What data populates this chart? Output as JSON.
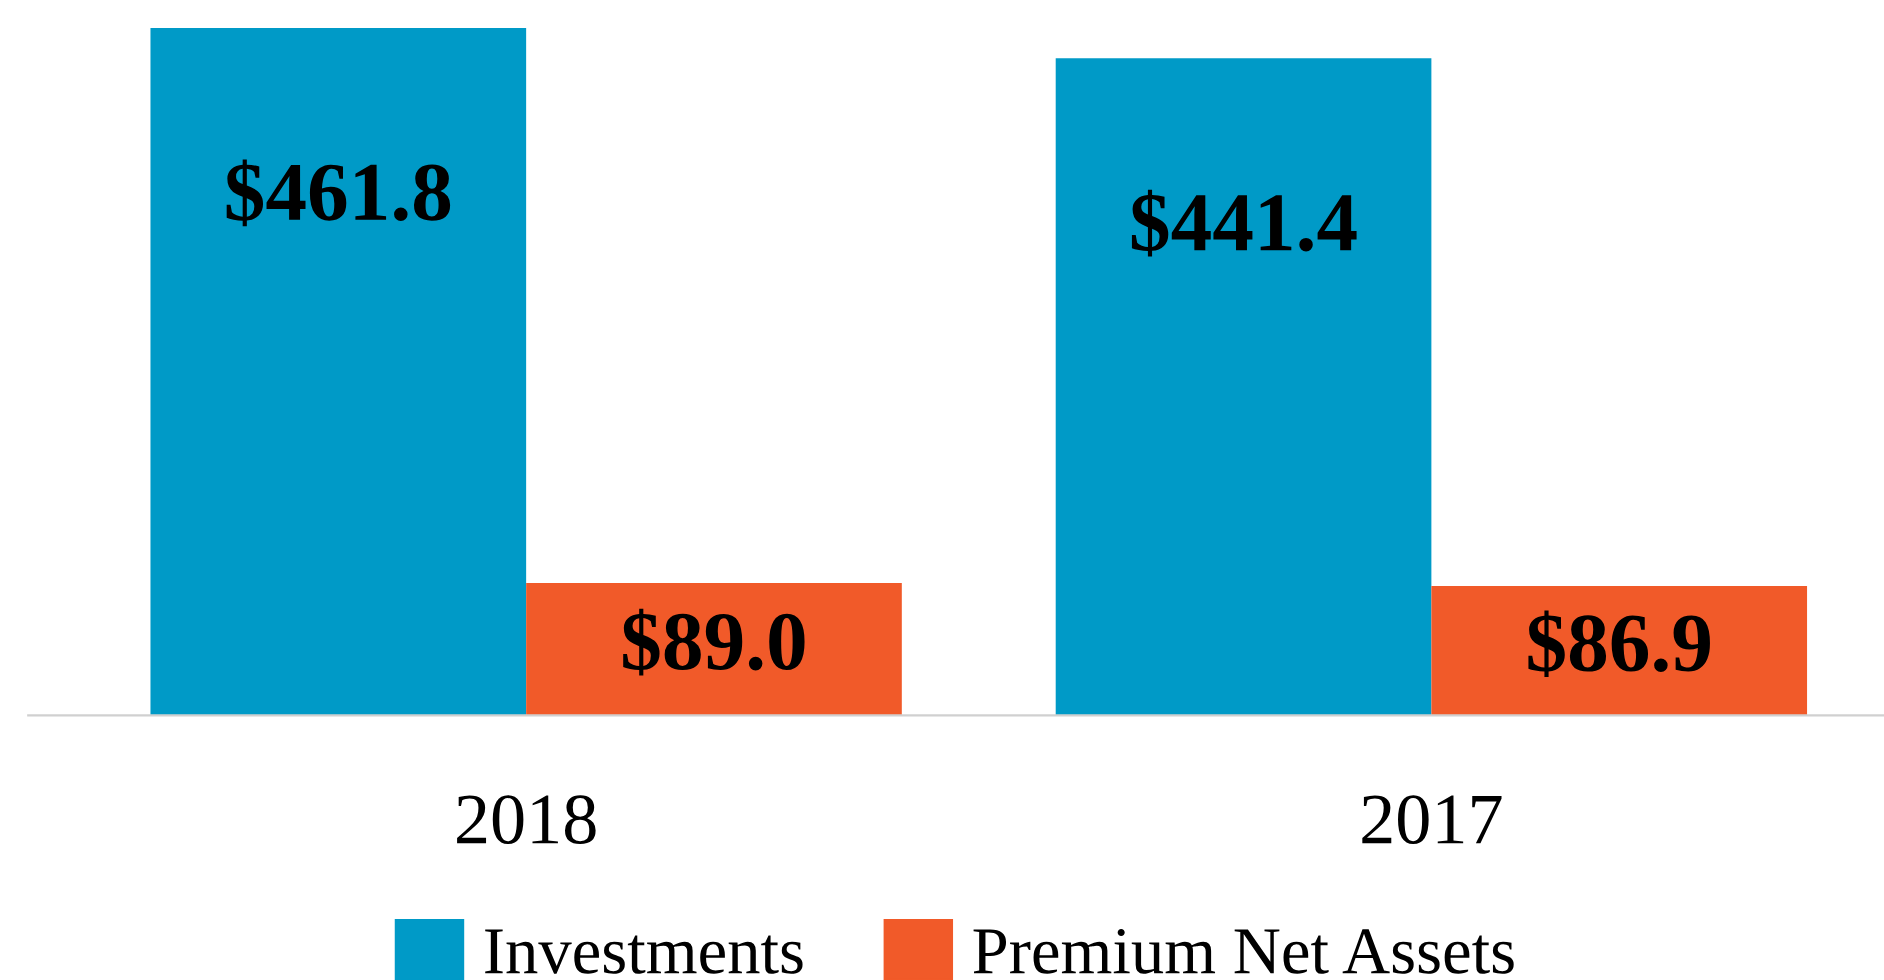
{
  "chart_data": {
    "type": "bar",
    "categories": [
      "2018",
      "2017"
    ],
    "series": [
      {
        "name": "Investments",
        "color": "#009ac7",
        "values": [
          461.8,
          441.4
        ],
        "value_labels": [
          "$461.8",
          "$441.4"
        ]
      },
      {
        "name": "Premium Net Assets",
        "color": "#f15a29",
        "values": [
          89.0,
          86.9
        ],
        "value_labels": [
          "$89.0",
          "$86.9"
        ]
      }
    ],
    "legend": "bottom"
  }
}
